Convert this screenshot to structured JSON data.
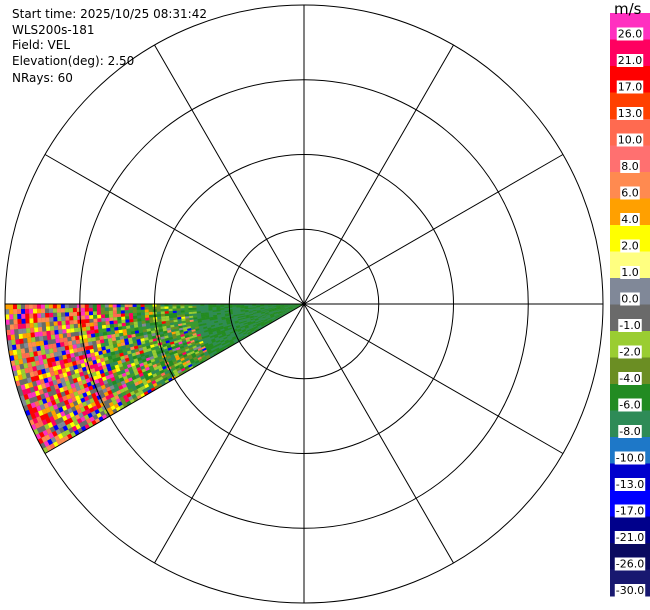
{
  "header": {
    "start_time": "Start time: 2025/10/25 08:31:42",
    "station": "WLS200s-181",
    "field": "Field: VEL",
    "elevation": "Elevation(deg): 2.50",
    "nrays": "NRays: 60"
  },
  "chart_data": {
    "type": "heatmap",
    "projection": "polar-ppi",
    "field": "VEL",
    "units": "m/s",
    "ring_count": 4,
    "radial_spokes_deg": [
      0,
      30,
      60,
      90,
      120,
      150,
      180,
      210,
      240,
      270,
      300,
      330
    ],
    "sector": {
      "azimuth_start_deg": 240,
      "azimuth_end_deg": 270,
      "max_range_fraction": 1.0
    },
    "colorbar": {
      "unit": "m/s",
      "levels": [
        {
          "label": "26.0",
          "color": "#ff30c0"
        },
        {
          "label": "21.0",
          "color": "#ff0060"
        },
        {
          "label": "17.0",
          "color": "#ff0000"
        },
        {
          "label": "13.0",
          "color": "#ff4000"
        },
        {
          "label": "10.0",
          "color": "#ff6a50"
        },
        {
          "label": "8.0",
          "color": "#ff7070"
        },
        {
          "label": "6.0",
          "color": "#ff8a50"
        },
        {
          "label": "4.0",
          "color": "#ffa000"
        },
        {
          "label": "2.0",
          "color": "#ffff00"
        },
        {
          "label": "1.0",
          "color": "#ffff80"
        },
        {
          "label": "0.0",
          "color": "#808898"
        },
        {
          "label": "-1.0",
          "color": "#6a6a6a"
        },
        {
          "label": "-2.0",
          "color": "#9acd32"
        },
        {
          "label": "-4.0",
          "color": "#6b8e23"
        },
        {
          "label": "-6.0",
          "color": "#228b22"
        },
        {
          "label": "-8.0",
          "color": "#2e8b57"
        },
        {
          "label": "-10.0",
          "color": "#1e78c8"
        },
        {
          "label": "-13.0",
          "color": "#0000cd"
        },
        {
          "label": "-17.0",
          "color": "#0000ff"
        },
        {
          "label": "-21.0",
          "color": "#00008b"
        },
        {
          "label": "-26.0",
          "color": "#0a0a60"
        },
        {
          "label": "-30.0",
          "color": "#181870"
        }
      ]
    }
  }
}
